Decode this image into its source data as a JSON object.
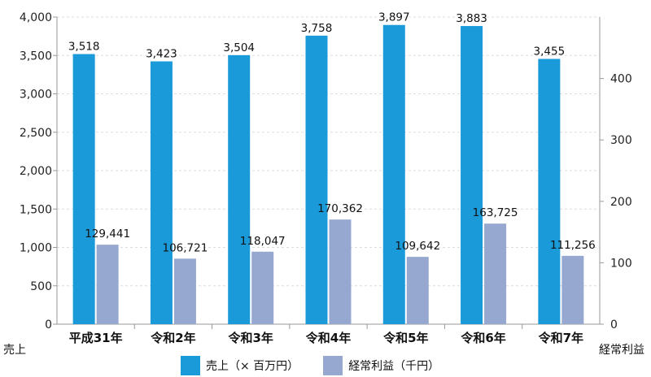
{
  "chart_data": {
    "type": "bar",
    "categories": [
      "平成31年",
      "令和2年",
      "令和3年",
      "令和4年",
      "令和5年",
      "令和6年",
      "令和7年"
    ],
    "series": [
      {
        "name": "売上（× 百万円）",
        "axis": "left",
        "color": "#1a9ad9",
        "values": [
          3518,
          3423,
          3504,
          3758,
          3897,
          3883,
          3455
        ],
        "labels": [
          "3,518",
          "3,423",
          "3,504",
          "3,758",
          "3,897",
          "3,883",
          "3,455"
        ]
      },
      {
        "name": "経常利益（千円）",
        "axis": "right",
        "color": "#96a8cf",
        "values": [
          129441,
          106721,
          118047,
          170362,
          109642,
          163725,
          111256
        ],
        "labels": [
          "129,441",
          "106,721",
          "118,047",
          "170,362",
          "109,642",
          "163,725",
          "111,256"
        ]
      }
    ],
    "y_left": {
      "label": "売上",
      "range": [
        0,
        4000
      ],
      "ticks": [
        0,
        500,
        1000,
        1500,
        2000,
        2500,
        3000,
        3500,
        4000
      ],
      "tick_labels": [
        "0",
        "500",
        "1,000",
        "1,500",
        "2,000",
        "2,500",
        "3,000",
        "3,500",
        "4,000"
      ]
    },
    "y_right": {
      "label": "経常利益",
      "range": [
        0,
        500
      ],
      "ticks": [
        0,
        100,
        200,
        300,
        400
      ],
      "tick_labels": [
        "0",
        "100",
        "200",
        "300",
        "400"
      ]
    },
    "grid": true,
    "legend_position": "bottom"
  }
}
